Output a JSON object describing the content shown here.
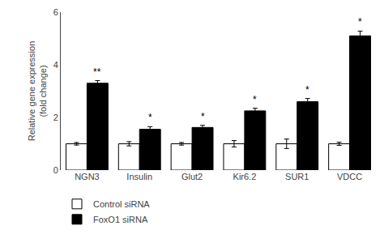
{
  "chart_data": {
    "type": "bar",
    "categories": [
      "NGN3",
      "Insulin",
      "Glut2",
      "Kir6.2",
      "SUR1",
      "VDCC"
    ],
    "series": [
      {
        "name": "Control siRNA",
        "color": "white",
        "values": [
          1.0,
          1.0,
          1.0,
          1.0,
          1.0,
          1.0
        ],
        "errors": [
          0.05,
          0.08,
          0.05,
          0.12,
          0.18,
          0.06
        ]
      },
      {
        "name": "FoxO1 siRNA",
        "color": "black",
        "values": [
          3.3,
          1.55,
          1.62,
          2.25,
          2.6,
          5.1
        ],
        "errors": [
          0.1,
          0.1,
          0.08,
          0.1,
          0.12,
          0.18
        ],
        "annotations": [
          "**",
          "*",
          "*",
          "*",
          "*",
          "*"
        ]
      }
    ],
    "ylabel": "Relative gene expression\n(fold change)",
    "ylim": [
      0,
      6
    ],
    "yticks": [
      0,
      2,
      4,
      6
    ],
    "grid": false,
    "legend": "bottom"
  }
}
